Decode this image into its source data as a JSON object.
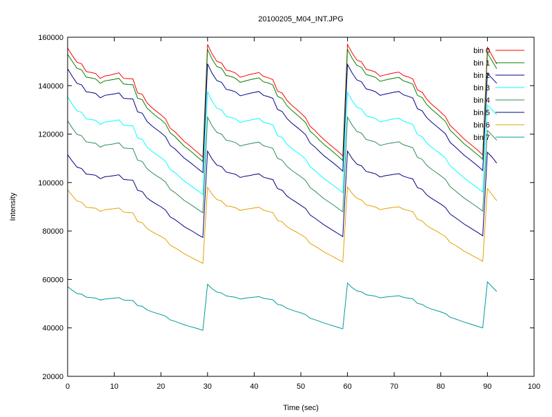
{
  "chart_data": {
    "type": "line",
    "title": "20100205_M04_INT.JPG",
    "xlabel": "Time (sec)",
    "ylabel": "Intensity",
    "xlim": [
      0,
      100
    ],
    "ylim": [
      20000,
      160000
    ],
    "xticks": [
      "0",
      "10",
      "20",
      "30",
      "40",
      "50",
      "60",
      "70",
      "80",
      "90",
      "100"
    ],
    "yticks": [
      "20000",
      "40000",
      "60000",
      "80000",
      "100000",
      "120000",
      "140000",
      "160000"
    ],
    "grid": false,
    "legend_position": "top-right",
    "x": [
      0,
      1,
      2,
      3,
      4,
      5,
      6,
      7,
      8,
      9,
      10,
      11,
      12,
      13,
      14,
      15,
      16,
      17,
      18,
      19,
      20,
      21,
      22,
      23,
      24,
      25,
      26,
      27,
      28,
      29,
      30,
      31,
      32,
      33,
      34,
      35,
      36,
      37,
      38,
      39,
      40,
      41,
      42,
      43,
      44,
      45,
      46,
      47,
      48,
      49,
      50,
      51,
      52,
      53,
      54,
      55,
      56,
      57,
      58,
      59,
      60,
      61,
      62,
      63,
      64,
      65,
      66,
      67,
      68,
      69,
      70,
      71,
      72,
      73,
      74,
      75,
      76,
      77,
      78,
      79,
      80,
      81,
      82,
      83,
      84,
      85,
      86,
      87,
      88,
      89,
      90,
      91,
      92
    ],
    "series": [
      {
        "name": "bin 0",
        "color": "#ff0000",
        "values": [
          155500,
          152400,
          149700,
          149000,
          145800,
          145500,
          145000,
          143000,
          144000,
          144300,
          144800,
          145300,
          143000,
          142900,
          142800,
          137000,
          136400,
          133000,
          131000,
          129500,
          128000,
          126200,
          122400,
          121000,
          119000,
          117000,
          115500,
          113800,
          112200,
          110500,
          157000,
          153000,
          150000,
          149400,
          146400,
          146000,
          145200,
          143500,
          144000,
          144600,
          145000,
          145400,
          143800,
          143300,
          142500,
          137800,
          136900,
          134000,
          132000,
          130400,
          128600,
          126800,
          123200,
          121500,
          119500,
          117700,
          116000,
          114400,
          112800,
          111000,
          157000,
          153500,
          150600,
          149800,
          146800,
          146300,
          145600,
          143900,
          144400,
          144900,
          145300,
          145600,
          144200,
          143600,
          142800,
          138200,
          137300,
          134400,
          132400,
          130800,
          129000,
          127200,
          123600,
          121800,
          119900,
          118000,
          116400,
          114800,
          113200,
          111400,
          155800,
          152400,
          149000
        ]
      },
      {
        "name": "bin 1",
        "color": "#008000",
        "values": [
          153000,
          150000,
          147200,
          146500,
          143500,
          143200,
          142800,
          141000,
          142000,
          142300,
          142600,
          143000,
          140700,
          140500,
          140400,
          134800,
          134200,
          130800,
          129000,
          127400,
          126000,
          124200,
          120500,
          119000,
          117000,
          115000,
          113600,
          112000,
          110300,
          108700,
          155000,
          150800,
          147900,
          147200,
          144200,
          143800,
          143000,
          141400,
          141900,
          142400,
          142800,
          143200,
          141600,
          141100,
          140300,
          135600,
          134700,
          131800,
          129900,
          128300,
          126600,
          124800,
          121200,
          119500,
          117500,
          115700,
          114100,
          112500,
          110900,
          109100,
          155000,
          151300,
          148400,
          147600,
          144600,
          144100,
          143400,
          141800,
          142300,
          142700,
          143100,
          143400,
          142000,
          141400,
          140600,
          136000,
          135100,
          132200,
          130300,
          128700,
          127000,
          125200,
          121600,
          119800,
          117900,
          116000,
          114500,
          112900,
          111300,
          109600,
          153500,
          150200,
          147000
        ]
      },
      {
        "name": "bin 2",
        "color": "#00008b",
        "values": [
          147000,
          143800,
          141000,
          140300,
          137500,
          137200,
          136800,
          135000,
          136000,
          136300,
          136600,
          137000,
          134800,
          134600,
          134500,
          129200,
          128600,
          125300,
          123500,
          122000,
          120600,
          118900,
          115300,
          113900,
          112000,
          110100,
          108700,
          107200,
          105600,
          104100,
          149000,
          145000,
          142100,
          141400,
          138500,
          138100,
          137400,
          135800,
          136300,
          136800,
          137200,
          137600,
          136000,
          135500,
          134800,
          130200,
          129300,
          126500,
          124600,
          123100,
          121500,
          119800,
          116300,
          114700,
          112800,
          111000,
          109500,
          108000,
          106400,
          104700,
          148800,
          145200,
          142400,
          141600,
          138700,
          138200,
          137500,
          136000,
          136500,
          136900,
          137300,
          137600,
          136200,
          135600,
          134900,
          130500,
          129600,
          126800,
          125000,
          123400,
          121800,
          120100,
          116600,
          114900,
          113100,
          111300,
          109800,
          108300,
          106700,
          105000,
          145000,
          143000,
          141000
        ]
      },
      {
        "name": "bin 3",
        "color": "#00ffff",
        "values": [
          135500,
          132300,
          129600,
          129000,
          126300,
          126000,
          125700,
          124000,
          125000,
          125200,
          125500,
          125900,
          123700,
          123500,
          123400,
          118400,
          117800,
          114700,
          113000,
          111600,
          110300,
          108700,
          105400,
          104100,
          102400,
          100600,
          99300,
          97900,
          96500,
          95100,
          137500,
          133500,
          130700,
          130000,
          127300,
          126900,
          126300,
          124800,
          125300,
          125700,
          126100,
          126500,
          124900,
          124400,
          123800,
          119400,
          118600,
          115900,
          114200,
          112800,
          111300,
          109700,
          106500,
          105000,
          103300,
          101600,
          100200,
          98800,
          97300,
          95800,
          137200,
          133800,
          131100,
          130400,
          127600,
          127100,
          126400,
          125000,
          125500,
          125900,
          126300,
          126600,
          125300,
          124700,
          124000,
          119800,
          119000,
          116300,
          114600,
          113200,
          111700,
          110100,
          106900,
          105300,
          103600,
          101900,
          100500,
          99100,
          97600,
          96100,
          132000,
          130000,
          128000
        ]
      },
      {
        "name": "bin 4",
        "color": "#2e8b57",
        "values": [
          125500,
          122500,
          119900,
          119300,
          116800,
          116500,
          116200,
          114600,
          115500,
          115700,
          116000,
          116400,
          114300,
          114100,
          114000,
          109300,
          108700,
          105800,
          104200,
          102900,
          101700,
          100200,
          97100,
          95900,
          94300,
          92600,
          91400,
          90100,
          88800,
          87500,
          127000,
          123300,
          120700,
          120000,
          117500,
          117100,
          116500,
          115100,
          115600,
          116000,
          116400,
          116700,
          115200,
          114700,
          114100,
          110000,
          109200,
          106700,
          105100,
          103800,
          102400,
          100900,
          97900,
          96500,
          94900,
          93300,
          92000,
          90700,
          89300,
          87900,
          127000,
          123700,
          121100,
          120400,
          117800,
          117300,
          116700,
          115300,
          115800,
          116200,
          116500,
          116800,
          115600,
          115000,
          114400,
          110400,
          109600,
          107100,
          105500,
          104200,
          102800,
          101300,
          98300,
          96800,
          95200,
          93600,
          92300,
          91000,
          89600,
          88200,
          121500,
          119500,
          117500
        ]
      },
      {
        "name": "bin 5",
        "color": "#000080",
        "values": [
          111500,
          108800,
          106400,
          105800,
          103500,
          103300,
          103000,
          101600,
          102400,
          102600,
          102900,
          103200,
          101300,
          101100,
          101000,
          96800,
          96300,
          93700,
          92300,
          91100,
          90000,
          88600,
          85800,
          84700,
          83300,
          81800,
          80700,
          79600,
          78400,
          77300,
          113000,
          109600,
          107200,
          106600,
          104300,
          103900,
          103400,
          102100,
          102600,
          102900,
          103300,
          103600,
          102200,
          101700,
          101200,
          97500,
          96800,
          94500,
          93100,
          91900,
          90600,
          89300,
          86600,
          85300,
          83900,
          82500,
          81300,
          80100,
          78900,
          77700,
          113000,
          109900,
          107600,
          106900,
          104600,
          104100,
          103600,
          102300,
          102800,
          103100,
          103400,
          103700,
          102600,
          102000,
          101500,
          97900,
          97200,
          94900,
          93500,
          92300,
          91100,
          89700,
          87000,
          85700,
          84300,
          82900,
          81700,
          80500,
          79300,
          78000,
          112500,
          110500,
          108000
        ]
      },
      {
        "name": "bin 6",
        "color": "#e69f00",
        "values": [
          97000,
          94600,
          92400,
          91900,
          89800,
          89600,
          89400,
          88100,
          88800,
          89000,
          89200,
          89500,
          87800,
          87600,
          87500,
          83900,
          83400,
          81100,
          79800,
          78800,
          77800,
          76600,
          74100,
          73100,
          71900,
          70600,
          69600,
          68600,
          67600,
          66600,
          98000,
          95100,
          93000,
          92400,
          90400,
          90100,
          89600,
          88500,
          88900,
          89200,
          89500,
          89800,
          88600,
          88100,
          87600,
          84400,
          83800,
          81800,
          80600,
          79600,
          78500,
          77300,
          74900,
          73800,
          72600,
          71300,
          70300,
          69300,
          68200,
          67200,
          98200,
          95500,
          93500,
          92800,
          90800,
          90400,
          89900,
          88800,
          89200,
          89500,
          89800,
          90000,
          89000,
          88500,
          88000,
          84800,
          84200,
          82200,
          81000,
          80000,
          78900,
          77700,
          75300,
          74200,
          73000,
          71700,
          70700,
          69600,
          68600,
          67500,
          97500,
          95000,
          92500
        ]
      },
      {
        "name": "bin 7",
        "color": "#009999",
        "values": [
          57000,
          55500,
          54200,
          53900,
          52700,
          52500,
          52300,
          51500,
          51900,
          52100,
          52300,
          52500,
          51500,
          51400,
          51300,
          49200,
          48900,
          47500,
          46700,
          46100,
          45500,
          44800,
          43300,
          42700,
          42000,
          41300,
          40700,
          40200,
          39600,
          39000,
          58000,
          56100,
          54800,
          54400,
          53200,
          52900,
          52600,
          51900,
          52200,
          52500,
          52700,
          52900,
          52200,
          51900,
          51600,
          49700,
          49300,
          48100,
          47400,
          46800,
          46200,
          45500,
          44000,
          43400,
          42700,
          42000,
          41400,
          40800,
          40200,
          39600,
          58500,
          56600,
          55300,
          54900,
          53700,
          53400,
          53100,
          52400,
          52700,
          52900,
          53100,
          53300,
          52600,
          52300,
          52000,
          50100,
          49700,
          48500,
          47800,
          47200,
          46600,
          45900,
          44400,
          43800,
          43100,
          42400,
          41800,
          41200,
          40600,
          40000,
          59000,
          57000,
          55000
        ]
      }
    ]
  }
}
